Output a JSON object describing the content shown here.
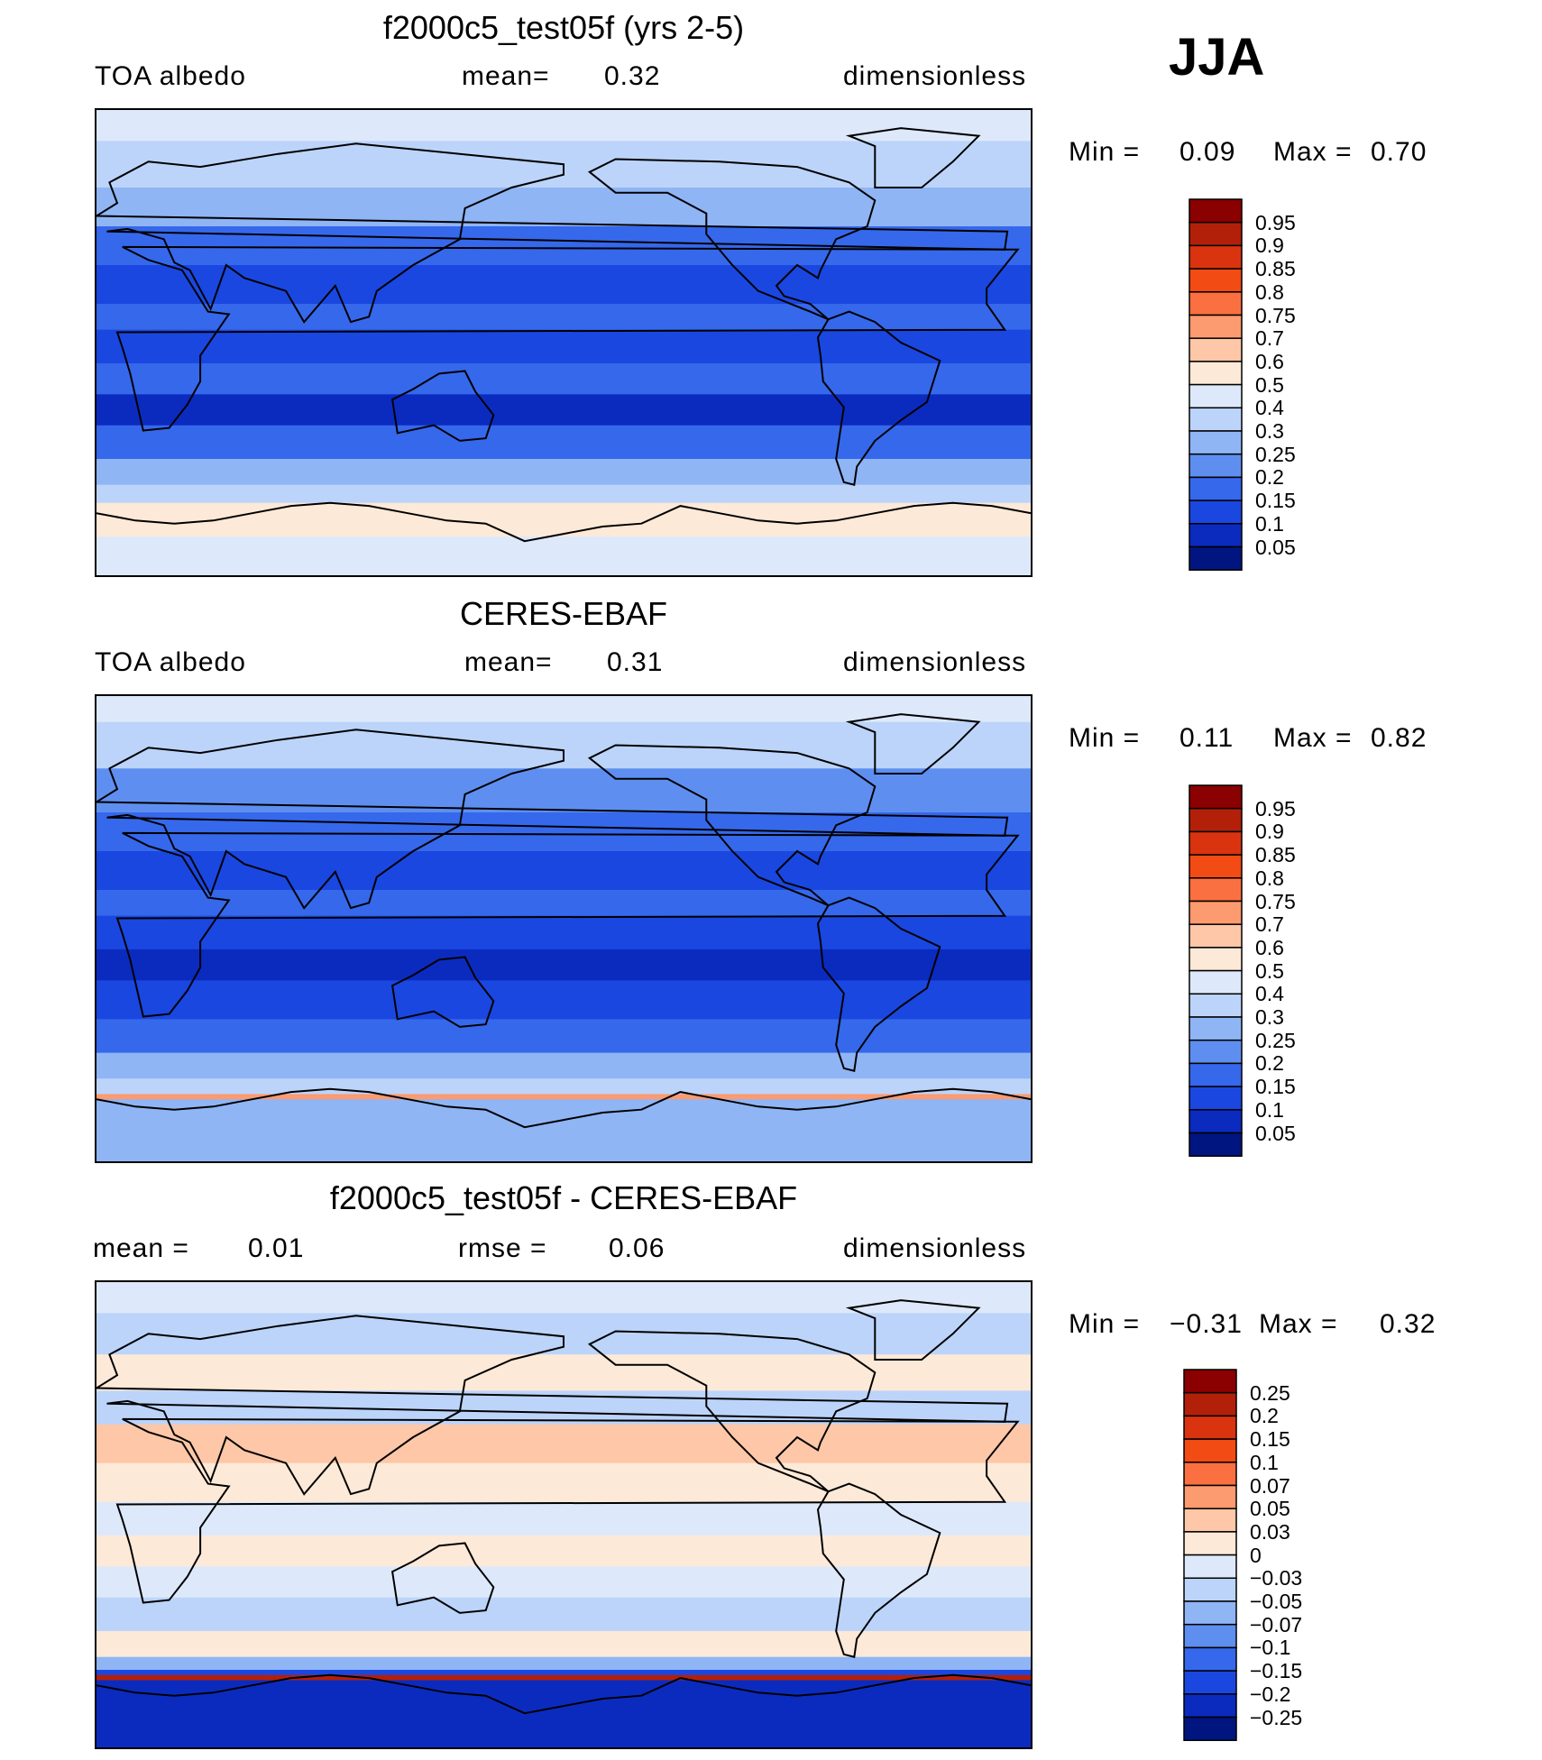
{
  "season": "JJA",
  "panels": [
    {
      "title": "f2000c5_test05f (yrs 2-5)",
      "left_label": "TOA albedo",
      "center_label": "mean=",
      "center_value": "0.32",
      "right_label": "dimensionless",
      "min_label": "Min =",
      "min_value": "0.09",
      "max_label": "Max =",
      "max_value": "0.70",
      "palette": "albedo",
      "bands": [
        {
          "lat": 90,
          "level": 7
        },
        {
          "lat": 78,
          "level": 6
        },
        {
          "lat": 60,
          "level": 5
        },
        {
          "lat": 45,
          "level": 3
        },
        {
          "lat": 30,
          "level": 2
        },
        {
          "lat": 15,
          "level": 3
        },
        {
          "lat": 5,
          "level": 2
        },
        {
          "lat": -8,
          "level": 3
        },
        {
          "lat": -20,
          "level": 1
        },
        {
          "lat": -32,
          "level": 3
        },
        {
          "lat": -45,
          "level": 5
        },
        {
          "lat": -55,
          "level": 6
        },
        {
          "lat": -62,
          "level": 8
        },
        {
          "lat": -75,
          "level": 7
        },
        {
          "lat": -90,
          "level": 7
        }
      ]
    },
    {
      "title": "CERES-EBAF",
      "left_label": "TOA albedo",
      "center_label": "mean=",
      "center_value": "0.31",
      "right_label": "dimensionless",
      "min_label": "Min =",
      "min_value": "0.11",
      "max_label": "Max =",
      "max_value": "0.82",
      "palette": "albedo",
      "bands": [
        {
          "lat": 90,
          "level": 7
        },
        {
          "lat": 80,
          "level": 6
        },
        {
          "lat": 62,
          "level": 4
        },
        {
          "lat": 45,
          "level": 3
        },
        {
          "lat": 30,
          "level": 2
        },
        {
          "lat": 15,
          "level": 3
        },
        {
          "lat": 5,
          "level": 2
        },
        {
          "lat": -8,
          "level": 1
        },
        {
          "lat": -20,
          "level": 2
        },
        {
          "lat": -35,
          "level": 3
        },
        {
          "lat": -48,
          "level": 5
        },
        {
          "lat": -58,
          "level": 6
        },
        {
          "lat": -64,
          "level": 10
        },
        {
          "lat": -66,
          "level": 5
        },
        {
          "lat": -90,
          "level": -1
        }
      ]
    },
    {
      "title": "f2000c5_test05f - CERES-EBAF",
      "left_label": "mean =",
      "left_value": "0.01",
      "center_label": "rmse =",
      "center_value": "0.06",
      "right_label": "dimensionless",
      "min_label": "Min =",
      "min_value": "−0.31",
      "max_label": "Max =",
      "max_value": "0.32",
      "palette": "diff",
      "bands": [
        {
          "lat": 90,
          "level": 7
        },
        {
          "lat": 78,
          "level": 6
        },
        {
          "lat": 62,
          "level": 8
        },
        {
          "lat": 48,
          "level": 6
        },
        {
          "lat": 35,
          "level": 9
        },
        {
          "lat": 20,
          "level": 8
        },
        {
          "lat": 5,
          "level": 7
        },
        {
          "lat": -8,
          "level": 8
        },
        {
          "lat": -20,
          "level": 7
        },
        {
          "lat": -32,
          "level": 6
        },
        {
          "lat": -45,
          "level": 8
        },
        {
          "lat": -55,
          "level": 5
        },
        {
          "lat": -60,
          "level": 2
        },
        {
          "lat": -62,
          "level": 14
        },
        {
          "lat": -64,
          "level": 1
        },
        {
          "lat": -90,
          "level": -1
        }
      ]
    }
  ],
  "colorbars": {
    "albedo": {
      "labels": [
        "0.95",
        "0.9",
        "0.85",
        "0.8",
        "0.75",
        "0.7",
        "0.6",
        "0.5",
        "0.4",
        "0.3",
        "0.25",
        "0.2",
        "0.15",
        "0.1",
        "0.05"
      ],
      "colors": [
        "#8b0000",
        "#b3200a",
        "#d9340f",
        "#f24b14",
        "#fb7040",
        "#fc9a70",
        "#fdc7a8",
        "#fde9d7",
        "#dde9fa",
        "#bcd4fa",
        "#8fb5f5",
        "#5e8ff0",
        "#3668eb",
        "#1a47e0",
        "#0b2bbf",
        "#00157f"
      ]
    },
    "diff": {
      "labels": [
        "0.25",
        "0.2",
        "0.15",
        "0.1",
        "0.07",
        "0.05",
        "0.03",
        "0",
        "−0.03",
        "−0.05",
        "−0.07",
        "−0.1",
        "−0.15",
        "−0.2",
        "−0.25"
      ],
      "colors": [
        "#8b0000",
        "#b3200a",
        "#d9340f",
        "#f24b14",
        "#fb7040",
        "#fc9a70",
        "#fdc7a8",
        "#fde9d7",
        "#dde9fa",
        "#bcd4fa",
        "#8fb5f5",
        "#5e8ff0",
        "#3668eb",
        "#1a47e0",
        "#0b2bbf",
        "#00157f"
      ]
    }
  }
}
